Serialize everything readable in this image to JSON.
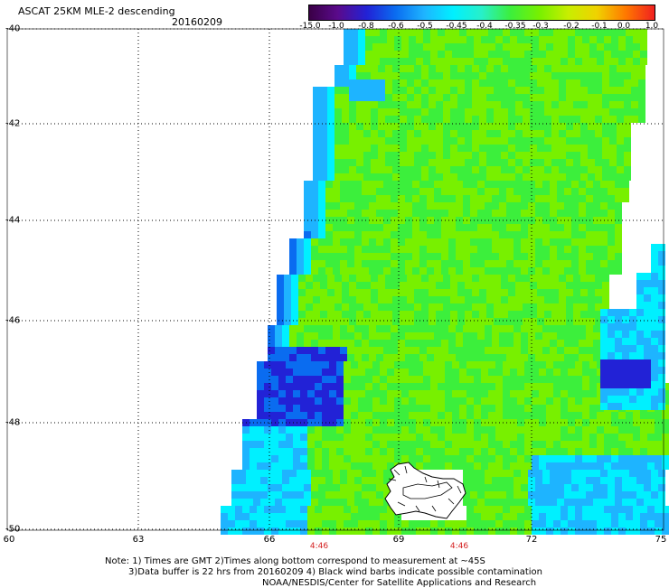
{
  "header": {
    "title": "ASCAT 25KM MLE-2 descending",
    "date": "20160209"
  },
  "colorbar": {
    "labels": [
      "-15.0",
      "-1.0",
      "-0.8",
      "-0.6",
      "-0.5",
      "-0.45",
      "-0.4",
      "-0.35",
      "-0.3",
      "-0.2",
      "-0.1",
      "0.0",
      "1.0"
    ],
    "colors": [
      "#3a0046",
      "#5a0a8c",
      "#2222d6",
      "#0a6cf0",
      "#1eb4ff",
      "#00f0ff",
      "#28f0c8",
      "#3cef3c",
      "#78f000",
      "#c8ee00",
      "#f0d200",
      "#ff7800",
      "#f02020"
    ]
  },
  "map": {
    "lat_labels": [
      "-40",
      "-42",
      "-44",
      "-46",
      "-48",
      "-50"
    ],
    "lon_labels": [
      "60",
      "63",
      "66",
      "69",
      "72",
      "75"
    ],
    "pass_times": [
      "4:46",
      "4:46"
    ]
  },
  "footer": {
    "line1": "Note: 1) Times are GMT 2)Times along bottom correspond to measurement at ~45S",
    "line2": "3)Data buffer is 22 hrs from 20160209 4) Black wind barbs indicate possible contamination",
    "line3": "NOAA/NESDIS/Center for Satellite Applications and Research"
  }
}
